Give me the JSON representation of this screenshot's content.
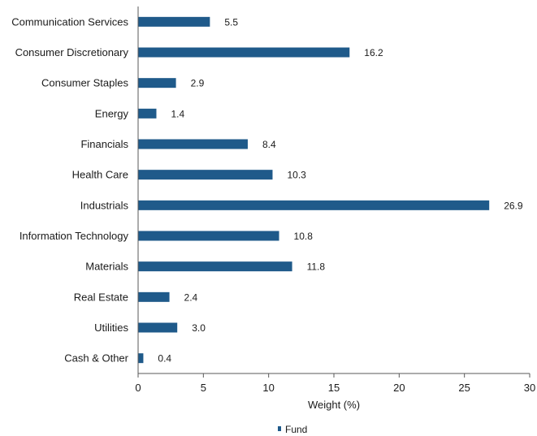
{
  "chart_data": {
    "type": "bar",
    "orientation": "horizontal",
    "categories": [
      "Communication Services",
      "Consumer Discretionary",
      "Consumer Staples",
      "Energy",
      "Financials",
      "Health Care",
      "Industrials",
      "Information Technology",
      "Materials",
      "Real Estate",
      "Utilities",
      "Cash & Other"
    ],
    "series": [
      {
        "name": "Fund",
        "color": "#1f5a8a",
        "values": [
          5.5,
          16.2,
          2.9,
          1.4,
          8.4,
          10.3,
          26.9,
          10.8,
          11.8,
          2.4,
          3.0,
          0.4
        ],
        "labels": [
          "5.5",
          "16.2",
          "2.9",
          "1.4",
          "8.4",
          "10.3",
          "26.9",
          "10.8",
          "11.8",
          "2.4",
          "3.0",
          "0.4"
        ]
      }
    ],
    "xlabel": "Weight (%)",
    "xlim": [
      0,
      30
    ],
    "xticks": [
      0,
      5,
      10,
      15,
      20,
      25,
      30
    ],
    "xtick_labels": [
      "0",
      "5",
      "10",
      "15",
      "20",
      "25",
      "30"
    ],
    "grid": false,
    "legend_position": "bottom-center",
    "legend_label": "Fund"
  }
}
